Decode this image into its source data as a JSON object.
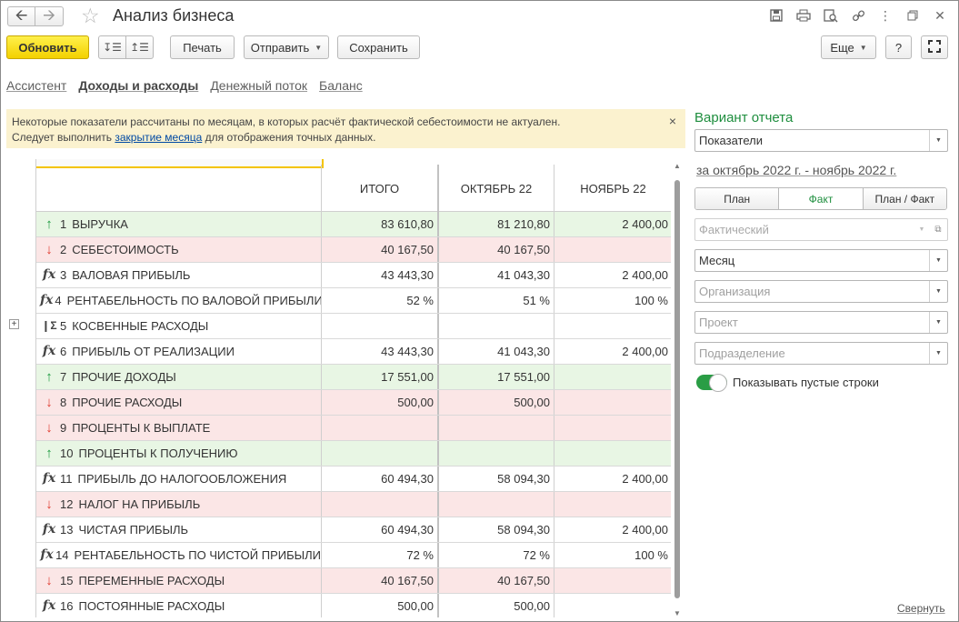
{
  "window": {
    "title": "Анализ бизнеса"
  },
  "nav": {
    "back_icon": "arrow-left-icon",
    "forward_icon": "arrow-right-icon",
    "favorite_icon": "star-icon"
  },
  "toolbar": {
    "refresh": "Обновить",
    "print": "Печать",
    "send": "Отправить",
    "save": "Сохранить",
    "more": "Еще",
    "help": "?"
  },
  "tabs": [
    {
      "label": "Ассистент",
      "active": false
    },
    {
      "label": "Доходы и расходы",
      "active": true
    },
    {
      "label": "Денежный поток",
      "active": false
    },
    {
      "label": "Баланс",
      "active": false
    }
  ],
  "warning": {
    "line1": "Некоторые показатели рассчитаны по месяцам, в которых расчёт фактической себестоимости не актуален.",
    "line2_pre": "Следует выполнить ",
    "link": "закрытие месяца",
    "line2_post": " для отображения точных данных.",
    "close": "×"
  },
  "table": {
    "columns": [
      "ИТОГО",
      "ОКТЯБРЬ 22",
      "НОЯБРЬ 22"
    ],
    "rows": [
      {
        "n": "1",
        "label": "ВЫРУЧКА",
        "icon": "up",
        "bg": "g",
        "v": [
          "83 610,80",
          "81 210,80",
          "2 400,00"
        ]
      },
      {
        "n": "2",
        "label": "СЕБЕСТОИМОСТЬ",
        "icon": "dn",
        "bg": "r",
        "v": [
          "40 167,50",
          "40 167,50",
          ""
        ]
      },
      {
        "n": "3",
        "label": "ВАЛОВАЯ ПРИБЫЛЬ",
        "icon": "fx",
        "bg": "",
        "v": [
          "43 443,30",
          "41 043,30",
          "2 400,00"
        ]
      },
      {
        "n": "4",
        "label": "РЕНТАБЕЛЬНОСТЬ ПО ВАЛОВОЙ ПРИБЫЛИ",
        "icon": "fx",
        "bg": "",
        "v": [
          "52 %",
          "51 %",
          "100 %"
        ]
      },
      {
        "n": "5",
        "label": "КОСВЕННЫЕ РАСХОДЫ",
        "icon": "fold",
        "bg": "",
        "v": [
          "",
          "",
          ""
        ]
      },
      {
        "n": "6",
        "label": "ПРИБЫЛЬ ОТ РЕАЛИЗАЦИИ",
        "icon": "fx",
        "bg": "",
        "v": [
          "43 443,30",
          "41 043,30",
          "2 400,00"
        ]
      },
      {
        "n": "7",
        "label": "ПРОЧИЕ ДОХОДЫ",
        "icon": "up",
        "bg": "g",
        "v": [
          "17 551,00",
          "17 551,00",
          ""
        ]
      },
      {
        "n": "8",
        "label": "ПРОЧИЕ РАСХОДЫ",
        "icon": "dn",
        "bg": "r",
        "v": [
          "500,00",
          "500,00",
          ""
        ]
      },
      {
        "n": "9",
        "label": "ПРОЦЕНТЫ К ВЫПЛАТЕ",
        "icon": "dn",
        "bg": "r",
        "v": [
          "",
          "",
          ""
        ]
      },
      {
        "n": "10",
        "label": "ПРОЦЕНТЫ К ПОЛУЧЕНИЮ",
        "icon": "up",
        "bg": "g",
        "v": [
          "",
          "",
          ""
        ]
      },
      {
        "n": "11",
        "label": "ПРИБЫЛЬ ДО НАЛОГООБЛОЖЕНИЯ",
        "icon": "fx",
        "bg": "",
        "v": [
          "60 494,30",
          "58 094,30",
          "2 400,00"
        ]
      },
      {
        "n": "12",
        "label": "НАЛОГ НА ПРИБЫЛЬ",
        "icon": "dn",
        "bg": "r",
        "v": [
          "",
          "",
          ""
        ]
      },
      {
        "n": "13",
        "label": "ЧИСТАЯ ПРИБЫЛЬ",
        "icon": "fx",
        "bg": "",
        "v": [
          "60 494,30",
          "58 094,30",
          "2 400,00"
        ]
      },
      {
        "n": "14",
        "label": "РЕНТАБЕЛЬНОСТЬ ПО ЧИСТОЙ ПРИБЫЛИ",
        "icon": "fx",
        "bg": "",
        "v": [
          "72 %",
          "72 %",
          "100 %"
        ]
      },
      {
        "n": "15",
        "label": "ПЕРЕМЕННЫЕ РАСХОДЫ",
        "icon": "dn",
        "bg": "r",
        "v": [
          "40 167,50",
          "40 167,50",
          ""
        ]
      },
      {
        "n": "16",
        "label": "ПОСТОЯННЫЕ РАСХОДЫ",
        "icon": "fx",
        "bg": "",
        "v": [
          "500,00",
          "500,00",
          ""
        ]
      }
    ]
  },
  "panel": {
    "title": "Вариант отчета",
    "variant": "Показатели",
    "period": "за октябрь 2022 г. - ноябрь 2022 г.",
    "modes": [
      "План",
      "Факт",
      "План / Факт"
    ],
    "active_mode": "Факт",
    "scenario_placeholder": "Фактический",
    "periodicity": "Месяц",
    "organization_placeholder": "Организация",
    "project_placeholder": "Проект",
    "division_placeholder": "Подразделение",
    "show_empty_rows": "Показывать пустые строки",
    "show_empty_rows_on": true,
    "collapse": "Свернуть"
  }
}
